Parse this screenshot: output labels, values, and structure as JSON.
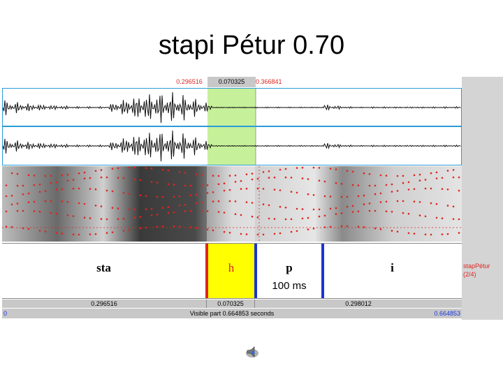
{
  "slide": {
    "title": "stapi Pétur 0.70"
  },
  "selection": {
    "start": "0.296516",
    "duration": "0.070325",
    "end": "0.366841"
  },
  "tier": {
    "intervals": [
      {
        "label": "sta",
        "sub": ""
      },
      {
        "label": "h",
        "sub": ""
      },
      {
        "label": "p",
        "sub": "100 ms"
      },
      {
        "label": "i",
        "sub": ""
      }
    ],
    "name_line1": "stapPétur",
    "name_line2": "(2/4)"
  },
  "durations": {
    "left": "0.296516",
    "middle": "0.070325",
    "right": "0.298012"
  },
  "visible": {
    "start": "0",
    "label": "Visible part 0.664853 seconds",
    "end": "0.664853"
  },
  "colors": {
    "selection_wave": "#c6f09a",
    "selection_tier": "#ffff00",
    "boundary_red": "#e0241e",
    "boundary_blue": "#1a34d6",
    "frame": "#2a9bd8"
  },
  "icons": {
    "speaker": "speaker-icon"
  }
}
